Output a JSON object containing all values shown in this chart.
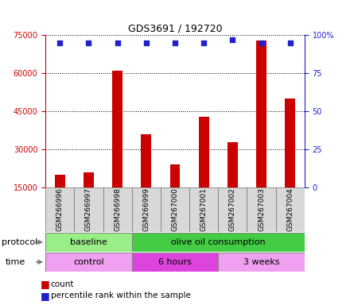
{
  "title": "GDS3691 / 192720",
  "samples": [
    "GSM266996",
    "GSM266997",
    "GSM266998",
    "GSM266999",
    "GSM267000",
    "GSM267001",
    "GSM267002",
    "GSM267003",
    "GSM267004"
  ],
  "counts": [
    20000,
    21000,
    61000,
    36000,
    24000,
    43000,
    33000,
    73000,
    50000
  ],
  "percentile_ranks": [
    95,
    95,
    95,
    95,
    95,
    95,
    97,
    95,
    95
  ],
  "ylim_left": [
    15000,
    75000
  ],
  "ylim_right": [
    0,
    100
  ],
  "yticks_left": [
    15000,
    30000,
    45000,
    60000,
    75000
  ],
  "yticks_right": [
    0,
    25,
    50,
    75,
    100
  ],
  "bar_color": "#cc0000",
  "dot_color": "#2222cc",
  "left_tick_color": "#cc0000",
  "right_tick_color": "#2222cc",
  "protocol_labels": [
    {
      "text": "baseline",
      "start": 0,
      "end": 3,
      "color": "#99ee88"
    },
    {
      "text": "olive oil consumption",
      "start": 3,
      "end": 9,
      "color": "#44cc44"
    }
  ],
  "time_labels": [
    {
      "text": "control",
      "start": 0,
      "end": 3,
      "color": "#f0a0f0"
    },
    {
      "text": "6 hours",
      "start": 3,
      "end": 6,
      "color": "#dd44dd"
    },
    {
      "text": "3 weeks",
      "start": 6,
      "end": 9,
      "color": "#f0a0f0"
    }
  ],
  "legend_count_color": "#cc0000",
  "legend_percentile_color": "#2222cc",
  "label_protocol": "protocol",
  "label_time": "time",
  "sample_bg_color": "#d8d8d8"
}
